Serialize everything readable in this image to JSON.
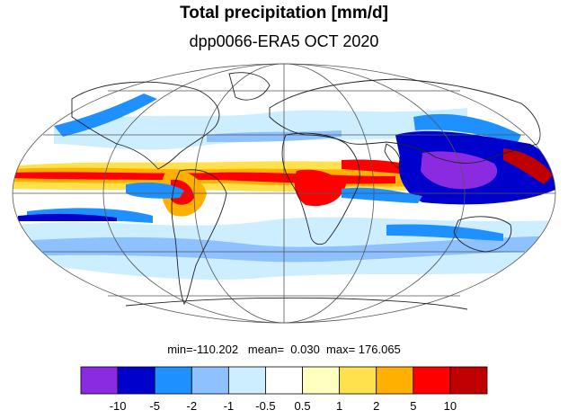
{
  "title": "Total precipitation [mm/d]",
  "subtitle": "dpp0066-ERA5 OCT 2020",
  "stats": {
    "text": "min=-110.202   mean=  0.030  max= 176.065"
  },
  "colorbar": {
    "colors": [
      "#8a2be2",
      "#0000cd",
      "#1e90ff",
      "#8ec1ff",
      "#cdeeff",
      "#ffffff",
      "#ffffc0",
      "#ffe14d",
      "#ffb000",
      "#ff0000",
      "#c00000"
    ],
    "labels": [
      "-10",
      "-5",
      "-2",
      "-1",
      "-0.5",
      "0.5",
      "1",
      "2",
      "5",
      "10"
    ]
  },
  "map": {
    "projection": "mollweide",
    "ocean_color": "#ffffff",
    "grid_color": "#555555"
  }
}
